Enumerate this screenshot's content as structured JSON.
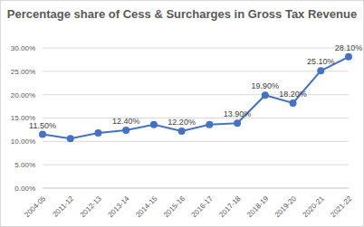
{
  "chart_data": {
    "type": "line",
    "title": "Percentage share of Cess & Surcharges in Gross Tax Revenue",
    "categories": [
      "2004-05",
      "2011-12",
      "2012-13",
      "2013-14",
      "2014-15",
      "2015-16",
      "2016-17",
      "2017-18",
      "2018-19",
      "2019-20",
      "2020-21",
      "2021-22"
    ],
    "values": [
      11.5,
      10.6,
      11.8,
      12.4,
      13.6,
      12.2,
      13.6,
      13.9,
      19.9,
      18.2,
      25.1,
      28.1
    ],
    "value_labels": [
      "11.50%",
      null,
      null,
      "12.40%",
      null,
      "12.20%",
      null,
      "13.90%",
      "19.90%",
      "18.20%",
      "25.10%",
      "28.10%"
    ],
    "data_labels": true,
    "color": "#4472c4",
    "marker": "circle",
    "ylim": [
      0,
      30
    ],
    "yticks": [
      {
        "value": 0,
        "label": "0.00%"
      },
      {
        "value": 5,
        "label": "5.00%"
      },
      {
        "value": 10,
        "label": "10.00%"
      },
      {
        "value": 15,
        "label": "15.00%"
      },
      {
        "value": 20,
        "label": "20.00%"
      },
      {
        "value": 25,
        "label": "25.00%"
      },
      {
        "value": 30,
        "label": "30.00%"
      }
    ],
    "grid": true
  }
}
